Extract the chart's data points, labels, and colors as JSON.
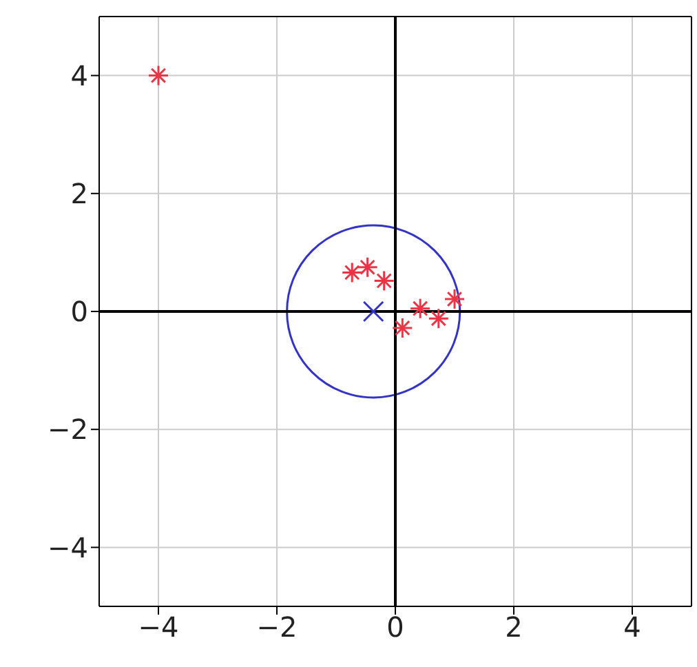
{
  "chart_data": {
    "type": "scatter",
    "xlim": [
      -5,
      5
    ],
    "ylim": [
      -5,
      5
    ],
    "xticks": [
      -4,
      -2,
      0,
      2,
      4
    ],
    "yticks": [
      -4,
      -2,
      0,
      2,
      4
    ],
    "grid": true,
    "legend": false,
    "series": [
      {
        "color": "#3333cc",
        "x": [
          -0.37
        ],
        "values": [
          0
        ]
      },
      {
        "color": "#ee3344",
        "marker": "cross",
        "x": [
          -4,
          -0.73,
          -0.47,
          -0.19,
          0.42,
          0.12,
          0.73,
          1.0
        ],
        "values": [
          4,
          0.66,
          0.75,
          0.52,
          0.05,
          -0.28,
          -0.12,
          0.21
        ]
      }
    ]
  }
}
